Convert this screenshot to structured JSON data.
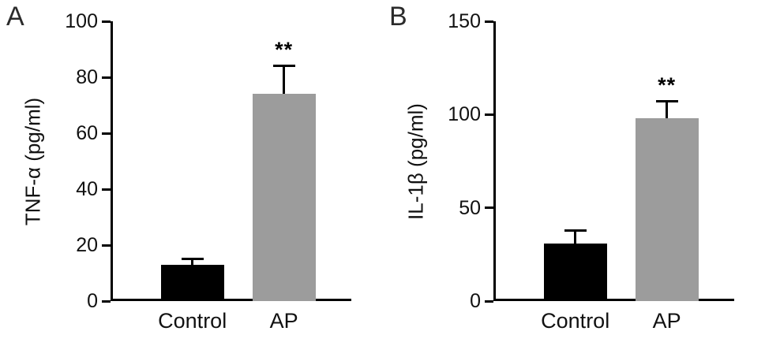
{
  "figure": {
    "background": "#ffffff",
    "panels": [
      "A",
      "B"
    ]
  },
  "chart_data": [
    {
      "type": "bar",
      "panel_label": "A",
      "ylabel": "TNF-α (pg/ml)",
      "categories": [
        "Control",
        "AP"
      ],
      "values": [
        13,
        74
      ],
      "errors": [
        2,
        10
      ],
      "significance": [
        "",
        "**"
      ],
      "ylim": [
        0,
        100
      ],
      "yticks": [
        0,
        20,
        40,
        60,
        80,
        100
      ],
      "bar_colors": [
        "#000000",
        "#9c9c9c"
      ],
      "grid": false,
      "legend": false
    },
    {
      "type": "bar",
      "panel_label": "B",
      "ylabel": "IL-1β (pg/ml)",
      "categories": [
        "Control",
        "AP"
      ],
      "values": [
        31,
        98
      ],
      "errors": [
        7,
        9
      ],
      "significance": [
        "",
        "**"
      ],
      "ylim": [
        0,
        150
      ],
      "yticks": [
        0,
        50,
        100,
        150
      ],
      "bar_colors": [
        "#000000",
        "#9c9c9c"
      ],
      "grid": false,
      "legend": false
    }
  ]
}
